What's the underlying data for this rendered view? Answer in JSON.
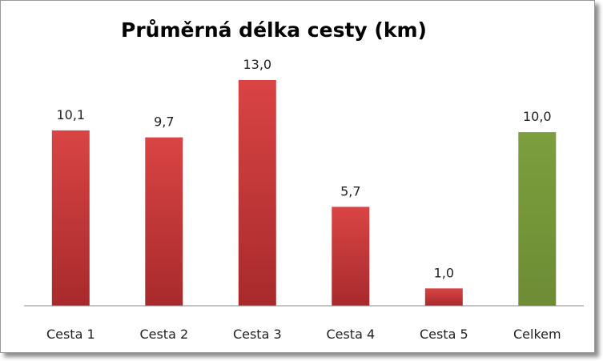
{
  "chart_data": {
    "type": "bar",
    "title": "Průměrná délka cesty (km)",
    "categories": [
      "Cesta 1",
      "Cesta 2",
      "Cesta 3",
      "Cesta 4",
      "Cesta 5",
      "Celkem"
    ],
    "values": [
      10.1,
      9.7,
      13.0,
      5.7,
      1.0,
      10.0
    ],
    "value_labels": [
      "10,1",
      "9,7",
      "13,0",
      "5,7",
      "1,0",
      "10,0"
    ],
    "colors": [
      "#c0393b",
      "#c0393b",
      "#c0393b",
      "#c0393b",
      "#c0393b",
      "#789a3a"
    ],
    "ylim": [
      0,
      13.0
    ],
    "grid": false,
    "legend": "none"
  }
}
